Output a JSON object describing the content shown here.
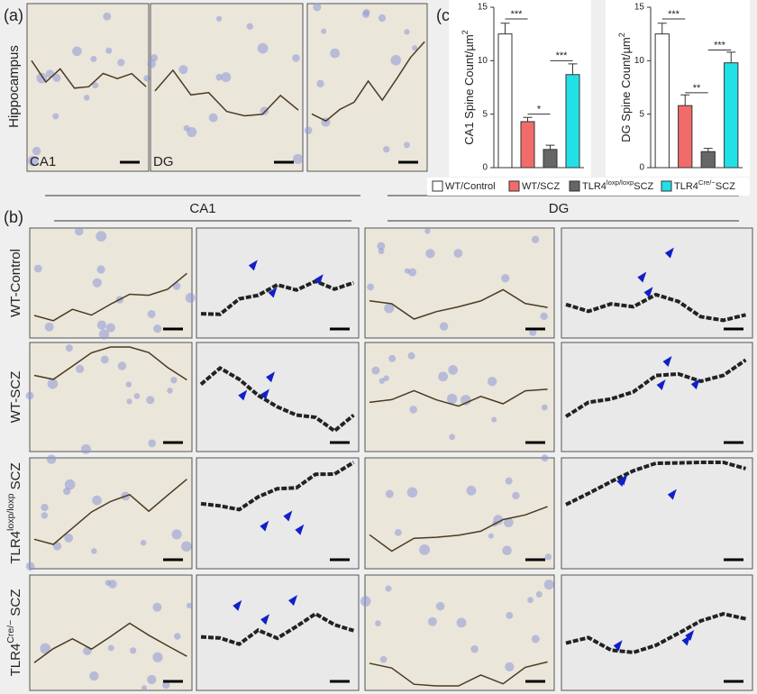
{
  "panel_a": {
    "label": "(a)",
    "row_label": "Hippocampus",
    "image_labels": [
      "CA1",
      "DG"
    ]
  },
  "panel_c": {
    "label": "(c)"
  },
  "panel_b": {
    "label": "(b)",
    "column_headers": [
      "CA1",
      "DG"
    ],
    "row_labels": [
      {
        "text": "WT-Control"
      },
      {
        "text": "WT-SCZ"
      },
      {
        "text": "TLR4",
        "sup": "loxp/loxp",
        "after": " SCZ"
      },
      {
        "text": "TLR4",
        "sup": "Cre/−",
        "after": " SCZ"
      }
    ]
  },
  "legend": [
    {
      "text": "WT/Control"
    },
    {
      "text": "WT/SCZ"
    },
    {
      "text": "TLR4",
      "sup": "loxp/loxp",
      "after": "SCZ"
    },
    {
      "text": "TLR4",
      "sup": "Cre/−",
      "after": "SCZ"
    }
  ],
  "chart_data": [
    {
      "type": "bar",
      "ylabel": "CA1 Spine Count/µm",
      "ylabel_sup": "2",
      "categories": [
        null,
        null,
        null,
        null
      ],
      "values": [
        12.5,
        4.3,
        1.7,
        8.7
      ],
      "errors": [
        1.0,
        0.4,
        0.4,
        1.0
      ],
      "colors": [
        "#ffffff",
        "#f26b6b",
        "#666666",
        "#22e0e8"
      ],
      "ylim": [
        0,
        15
      ],
      "yticks": [
        0,
        5,
        10,
        15
      ],
      "annotations": [
        {
          "text": "***",
          "value": 13.9
        },
        {
          "text": "*",
          "value": 5.0
        },
        {
          "text": "***",
          "value": 10.0
        }
      ]
    },
    {
      "type": "bar",
      "ylabel": "DG Spine Count/µm",
      "ylabel_sup": "2",
      "categories": [
        null,
        null,
        null,
        null
      ],
      "values": [
        12.5,
        5.8,
        1.5,
        9.8
      ],
      "errors": [
        1.0,
        1.0,
        0.3,
        1.0
      ],
      "colors": [
        "#ffffff",
        "#f26b6b",
        "#666666",
        "#22e0e8"
      ],
      "ylim": [
        0,
        15
      ],
      "yticks": [
        0,
        5,
        10,
        15
      ],
      "annotations": [
        {
          "text": "***",
          "value": 13.9
        },
        {
          "text": "**",
          "value": 7.0
        },
        {
          "text": "***",
          "value": 11.0
        }
      ]
    }
  ]
}
